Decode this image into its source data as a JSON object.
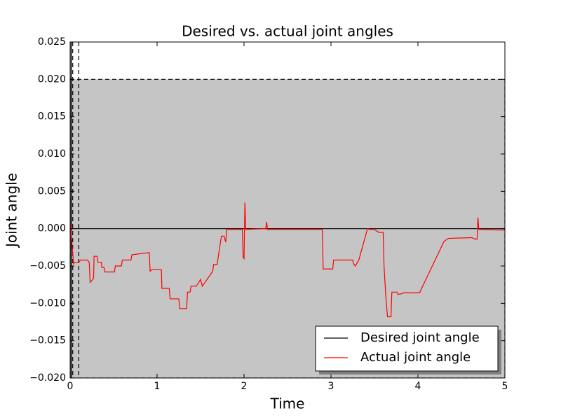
{
  "chart_data": {
    "type": "line",
    "title": "Desired vs. actual joint angles",
    "x_label": "Time",
    "y_label": "Joint angle",
    "xlim": [
      0,
      5
    ],
    "ylim": [
      -0.02,
      0.025
    ],
    "xticks": [
      0,
      1,
      2,
      3,
      4,
      5
    ],
    "yticks": [
      {
        "value": -0.02,
        "label": "−0.020"
      },
      {
        "value": -0.015,
        "label": "−0.015"
      },
      {
        "value": -0.01,
        "label": "−0.010"
      },
      {
        "value": -0.005,
        "label": "−0.005"
      },
      {
        "value": 0,
        "label": "0.000"
      },
      0.005,
      {
        "value": 0.01,
        "label": "0.010"
      },
      0.015,
      {
        "value": 0.02,
        "label": "0.020"
      },
      0.025
    ],
    "shaded_band": [
      -0.02,
      0.02
    ],
    "band_color": "#c5c5c5",
    "dashed_vlines": [
      0.03,
      0.1
    ],
    "legend": "lower right",
    "series": [
      {
        "name": "Desired joint angle",
        "color": "#000000",
        "x": [
          0,
          5
        ],
        "values": [
          0,
          0
        ]
      },
      {
        "name": "Actual joint angle",
        "color": "#ff0000",
        "x": [
          0,
          0.04,
          0.05,
          0.1,
          0.12,
          0.2,
          0.22,
          0.23,
          0.26,
          0.27,
          0.275,
          0.31,
          0.32,
          0.36,
          0.365,
          0.39,
          0.4,
          0.51,
          0.52,
          0.59,
          0.6,
          0.7,
          0.71,
          0.91,
          0.92,
          0.94,
          1.05,
          1.055,
          1.14,
          1.15,
          1.25,
          1.26,
          1.34,
          1.35,
          1.38,
          1.39,
          1.45,
          1.48,
          1.5,
          1.52,
          1.64,
          1.65,
          1.69,
          1.72,
          1.74,
          1.77,
          1.79,
          1.8,
          1.98,
          1.99,
          2.0,
          2.01,
          2.02,
          2.25,
          2.26,
          2.27,
          2.9,
          2.91,
          3.02,
          3.03,
          3.25,
          3.26,
          3.28,
          3.32,
          3.42,
          3.44,
          3.5,
          3.55,
          3.6,
          3.61,
          3.63,
          3.65,
          3.69,
          3.7,
          3.76,
          3.77,
          3.82,
          3.83,
          4.02,
          4.03,
          4.3,
          4.35,
          4.62,
          4.66,
          4.68,
          4.69,
          4.7,
          5.0
        ],
        "values": [
          0.001,
          -0.0047,
          -0.0045,
          -0.0045,
          -0.0042,
          -0.0042,
          -0.0045,
          -0.0072,
          -0.0068,
          -0.0066,
          -0.0037,
          -0.0037,
          -0.0045,
          -0.0045,
          -0.0052,
          -0.0052,
          -0.0058,
          -0.0058,
          -0.005,
          -0.005,
          -0.0042,
          -0.0042,
          -0.0035,
          -0.0032,
          -0.0057,
          -0.0055,
          -0.0055,
          -0.008,
          -0.008,
          -0.0094,
          -0.0094,
          -0.0107,
          -0.0107,
          -0.0085,
          -0.0085,
          -0.0077,
          -0.0077,
          -0.0072,
          -0.0068,
          -0.0077,
          -0.0057,
          -0.0048,
          -0.0048,
          -0.0025,
          -0.001,
          -0.001,
          -0.0018,
          -0.0001,
          -0.0001,
          -0.0038,
          -0.004,
          0.0035,
          -0.0001,
          0,
          0.0009,
          -0.0001,
          -0.0001,
          -0.0054,
          -0.0054,
          -0.0042,
          -0.0042,
          -0.0047,
          -0.005,
          -0.0042,
          0,
          -0.0001,
          -0.0001,
          -0.0005,
          -0.0005,
          -0.005,
          -0.009,
          -0.0118,
          -0.0118,
          -0.0085,
          -0.0085,
          -0.0088,
          -0.0087,
          -0.0086,
          -0.0086,
          -0.0083,
          -0.0017,
          -0.0013,
          -0.0012,
          -0.0014,
          -0.0014,
          0.0015,
          -0.0001,
          -0.0002
        ]
      }
    ]
  }
}
